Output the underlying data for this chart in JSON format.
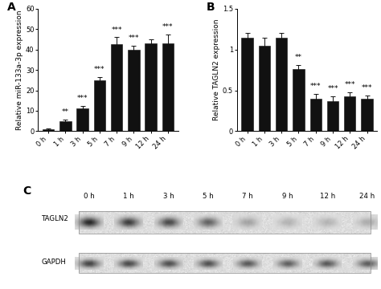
{
  "panel_A": {
    "categories": [
      "0 h",
      "1 h",
      "3 h",
      "5 h",
      "7 h",
      "9 h",
      "12 h",
      "24 h"
    ],
    "values": [
      1.0,
      5.0,
      11.0,
      25.0,
      42.5,
      40.0,
      43.0,
      43.0
    ],
    "errors": [
      0.4,
      0.8,
      1.5,
      1.5,
      3.5,
      2.0,
      2.0,
      4.5
    ],
    "significance": [
      "",
      "**",
      "***",
      "***",
      "***",
      "***",
      "",
      "***"
    ],
    "ylabel": "Relative miR-133a-3p expression",
    "ylim": [
      0,
      60
    ],
    "yticks": [
      0,
      10,
      20,
      30,
      40,
      50,
      60
    ],
    "label": "A"
  },
  "panel_B": {
    "categories": [
      "0 h",
      "1 h",
      "3 h",
      "5 h",
      "7 h",
      "9 h",
      "12 h",
      "24 h"
    ],
    "values": [
      1.14,
      1.05,
      1.14,
      0.76,
      0.4,
      0.37,
      0.43,
      0.4
    ],
    "errors": [
      0.06,
      0.09,
      0.06,
      0.05,
      0.06,
      0.06,
      0.05,
      0.04
    ],
    "significance": [
      "",
      "",
      "",
      "**",
      "***",
      "***",
      "***",
      "***"
    ],
    "ylabel": "Relative TAGLN2 expression",
    "ylim": [
      0,
      1.5
    ],
    "yticks": [
      0.0,
      0.5,
      1.0,
      1.5
    ],
    "label": "B"
  },
  "panel_C": {
    "label": "C",
    "time_labels": [
      "0 h",
      "1 h",
      "3 h",
      "5 h",
      "7 h",
      "9 h",
      "12 h",
      "24 h"
    ],
    "tagln2_label": "TAGLN2",
    "gapdh_label": "GAPDH",
    "tagln2_intensities": [
      0.88,
      0.78,
      0.72,
      0.6,
      0.3,
      0.22,
      0.22,
      0.25
    ],
    "gapdh_intensities": [
      0.75,
      0.72,
      0.7,
      0.68,
      0.65,
      0.62,
      0.65,
      0.63
    ]
  },
  "bar_color": "#111111",
  "background_color": "#ffffff",
  "sig_fontsize": 6.5,
  "axis_fontsize": 6.5,
  "label_fontsize": 10,
  "tick_fontsize": 6.0
}
